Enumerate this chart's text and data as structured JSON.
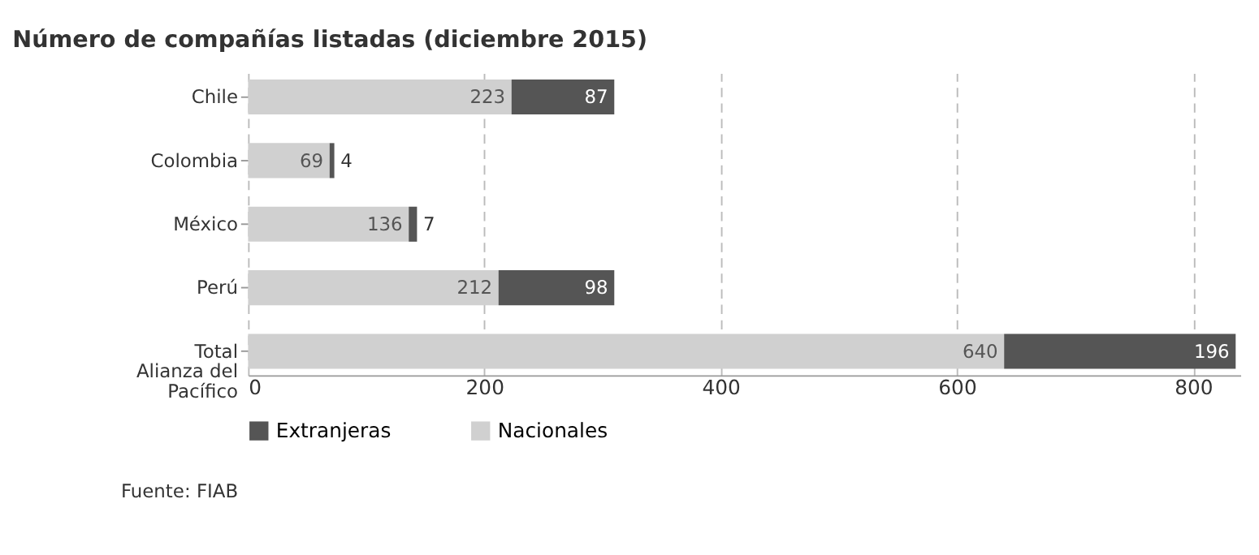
{
  "chart_data": {
    "type": "bar",
    "orientation": "horizontal",
    "stacked": true,
    "title": "Número de compañías listadas (diciembre 2015)",
    "categories": [
      "Chile",
      "Colombia",
      "México",
      "Perú",
      "Total\nAlianza del\nPacífico"
    ],
    "series": [
      {
        "name": "Nacionales",
        "color": "#d0d0d0",
        "values": [
          223,
          69,
          136,
          212,
          640
        ]
      },
      {
        "name": "Extranjeras",
        "color": "#555555",
        "values": [
          87,
          4,
          7,
          98,
          196
        ]
      }
    ],
    "xlim": [
      0,
      840
    ],
    "xticks": [
      0,
      200,
      400,
      600,
      800
    ],
    "grid": "x",
    "legend": "bottom",
    "data_labels": true,
    "annotations": [
      "Fuente: FIAB"
    ]
  }
}
